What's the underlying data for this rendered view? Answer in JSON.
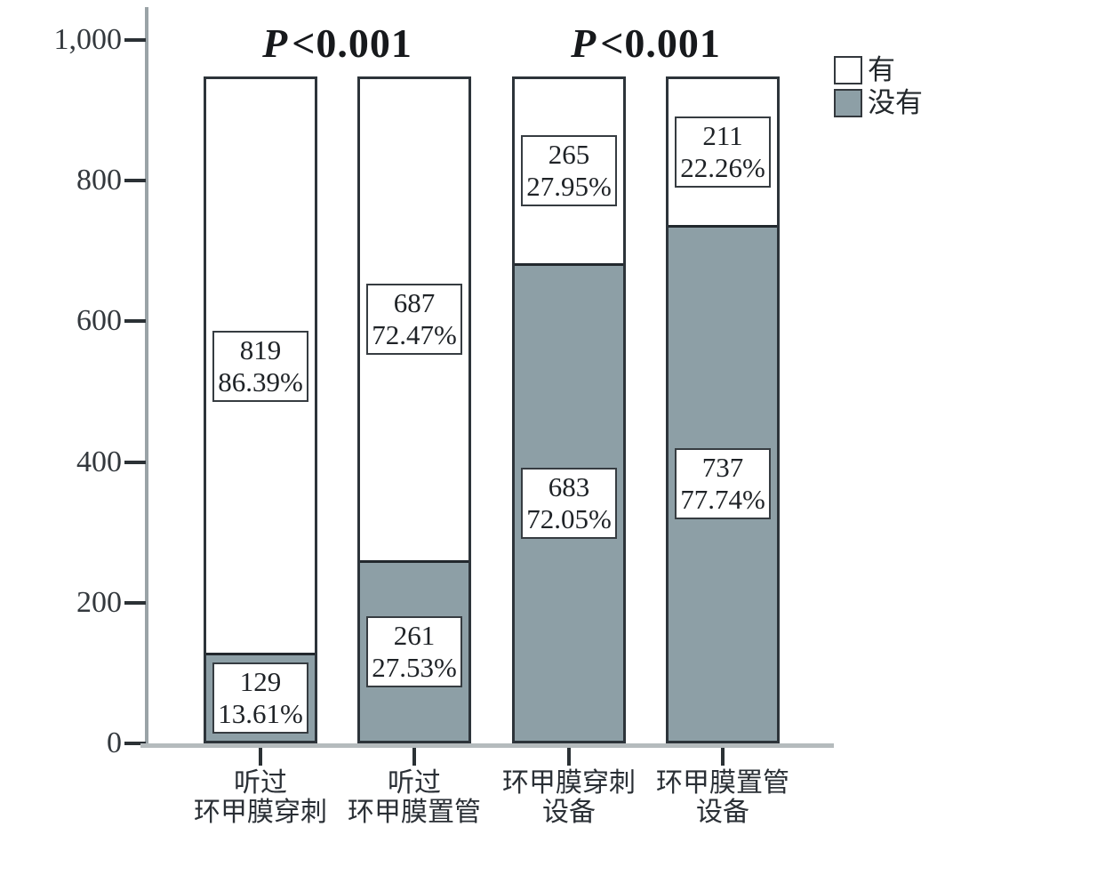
{
  "chart_data": {
    "type": "bar",
    "stacked": true,
    "title": "",
    "xlabel": "",
    "ylabel": "",
    "categories": [
      "听过\n环甲膜穿刺",
      "听过\n环甲膜置管",
      "环甲膜穿刺\n设备",
      "环甲膜置管\n设备"
    ],
    "series": [
      {
        "name": "有",
        "fill": "#ffffff",
        "position": "top",
        "values": [
          819,
          687,
          265,
          211
        ],
        "percents": [
          "86.39%",
          "72.47%",
          "27.95%",
          "22.26%"
        ]
      },
      {
        "name": "没有",
        "fill": "#8d9fa6",
        "position": "bottom",
        "values": [
          129,
          261,
          683,
          737
        ],
        "percents": [
          "13.61%",
          "27.53%",
          "72.05%",
          "77.74%"
        ]
      }
    ],
    "ylim": [
      0,
      1000
    ],
    "yticks": [
      0,
      200,
      400,
      600,
      800,
      1000
    ],
    "ytick_labels": [
      "0",
      "200",
      "400",
      "600",
      "800",
      "1,000"
    ],
    "grid": false,
    "legend_position": "upper right",
    "legend": [
      {
        "label": "有",
        "fill": "#ffffff"
      },
      {
        "label": "没有",
        "fill": "#8d9fa6"
      }
    ],
    "annotations": [
      {
        "p": "P",
        "rest": "<0.001",
        "between_bars": [
          0,
          1
        ]
      },
      {
        "p": "P",
        "rest": "<0.001",
        "between_bars": [
          2,
          3
        ]
      }
    ],
    "colors": {
      "bar_border": "#2d343a",
      "segment_divider": "#22282d",
      "value_box_border": "#363c41",
      "y_axis_line": "#9aa3a7",
      "x_axis_line": "#b5bbbd",
      "tick_mark": "#2b3135",
      "text": "#1e2226"
    }
  }
}
